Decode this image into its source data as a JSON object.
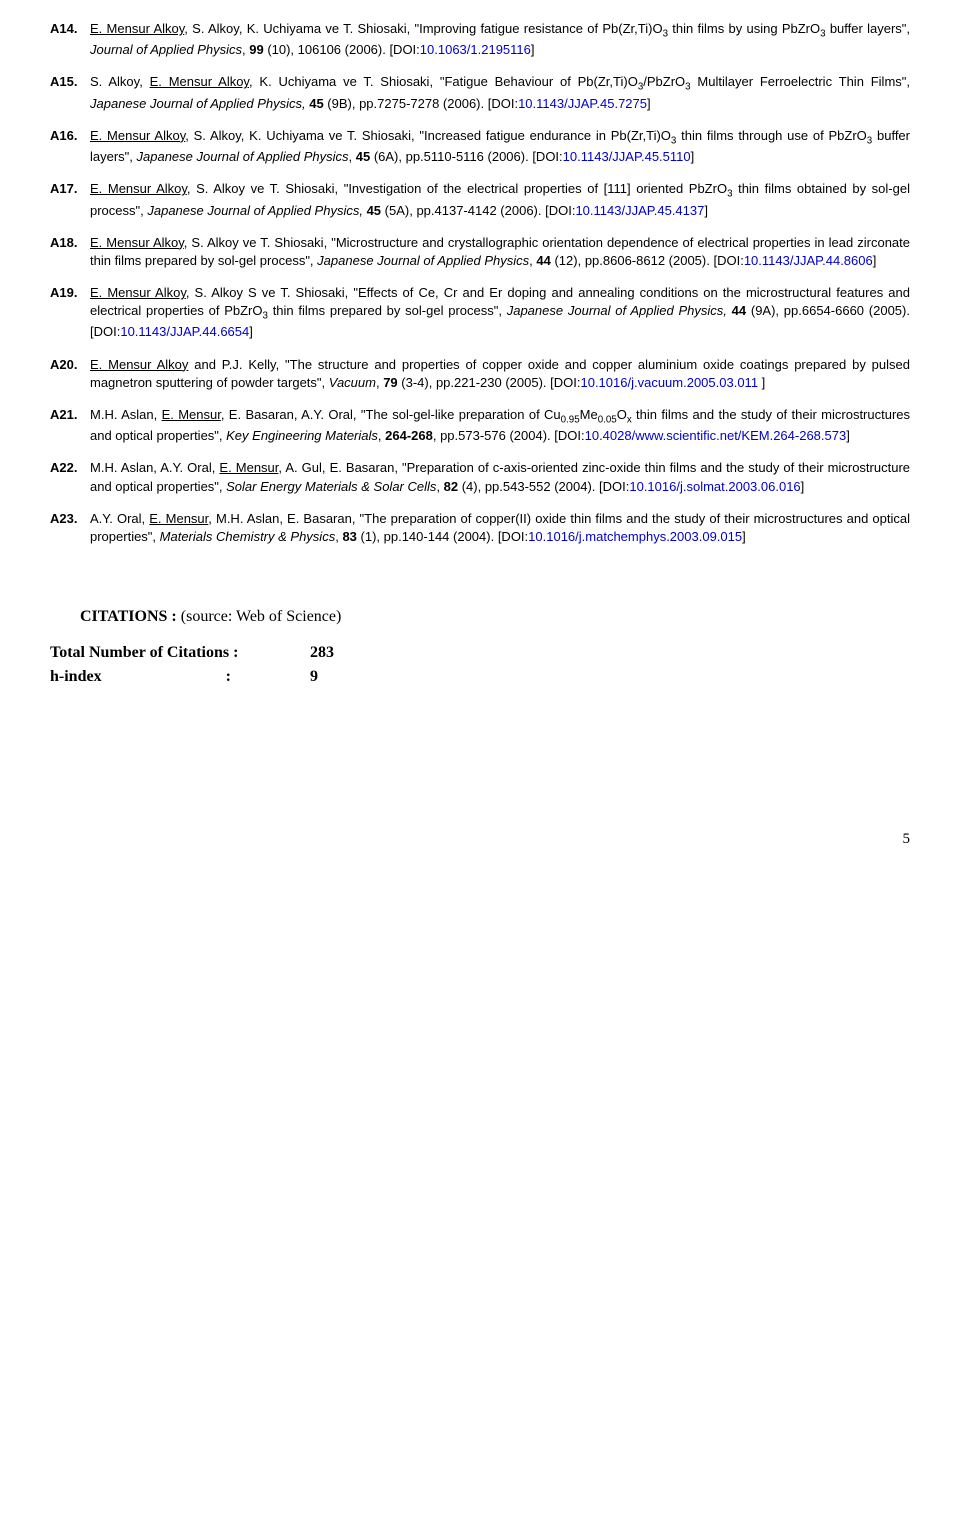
{
  "references": [
    {
      "num": "A14.",
      "author_underlined": "E. Mensur Alkoy",
      "rest_authors": ", S. Alkoy, K. Uchiyama ve T. Shiosaki, ",
      "title_open": "\"Improving fatigue resistance of Pb(Zr,Ti)O",
      "title_sub1": "3",
      "title_mid": " thin films by using PbZrO",
      "title_sub2": "3",
      "title_close": " buffer layers\", ",
      "journal": "Journal of Applied Physics",
      "after_journal": ", ",
      "volume": "99",
      "issue_pp": " (10), 106106 (2006). [DOI:",
      "doi": "10.1063/1.2195116",
      "doi_close": "]"
    },
    {
      "num": "A15.",
      "author_pre": "S. Alkoy, ",
      "author_underlined": "E. Mensur Alkoy",
      "rest_authors": ", K. Uchiyama ve T. Shiosaki, ",
      "title_open": "\"Fatigue Behaviour of Pb(Zr,Ti)O",
      "title_sub1": "3",
      "title_mid": "/PbZrO",
      "title_sub2": "3",
      "title_close": " Multilayer Ferroelectric Thin Films\", ",
      "journal": "Japanese Journal of Applied Physics, ",
      "volume": "45",
      "issue_pp": " (9B), pp.7275-7278 (2006). [DOI:",
      "doi": "10.1143/JJAP.45.7275",
      "doi_close": "]"
    },
    {
      "num": "A16.",
      "author_underlined": "E. Mensur Alkoy",
      "rest_authors": ", S. Alkoy, K. Uchiyama ve T. Shiosaki, ",
      "title_open": "\"Increased fatigue endurance in Pb(Zr,Ti)O",
      "title_sub1": "3",
      "title_mid": " thin films through use of PbZrO",
      "title_sub2": "3",
      "title_close": " buffer layers\", ",
      "journal": "Japanese Journal of Applied Physics",
      "after_journal": ", ",
      "volume": "45",
      "issue_pp": " (6A), pp.5110-5116 (2006). [DOI:",
      "doi": "10.1143/JJAP.45.5110",
      "doi_close": "]"
    },
    {
      "num": "A17.",
      "author_underlined": "E. Mensur Alkoy",
      "rest_authors": ", S. Alkoy ve T. Shiosaki, ",
      "title_open": "\"Investigation of the electrical properties of [111] oriented PbZrO",
      "title_sub1": "3",
      "title_close": " thin films obtained by sol-gel process\", ",
      "journal": "Japanese Journal of Applied Physics, ",
      "volume": "45",
      "issue_pp": " (5A), pp.4137-4142 (2006). [DOI:",
      "doi": "10.1143/JJAP.45.4137",
      "doi_close": "]"
    },
    {
      "num": "A18.",
      "author_underlined": "E. Mensur Alkoy",
      "rest_authors": ", S. Alkoy ve T. Shiosaki, ",
      "title_plain": "\"Microstructure and crystallographic orientation dependence of electrical properties in lead zirconate thin films prepared by sol-gel process\", ",
      "journal": "Japanese Journal of Applied Physics",
      "after_journal": ", ",
      "volume": "44",
      "issue_pp": " (12), pp.8606-8612 (2005). [DOI:",
      "doi": "10.1143/JJAP.44.8606",
      "doi_close": "]"
    },
    {
      "num": "A19.",
      "author_underlined": "E. Mensur Alkoy",
      "rest_authors": ", S. Alkoy S ve T. Shiosaki, ",
      "title_open": "\"Effects of Ce, Cr and Er doping and annealing conditions on the microstructural features and electrical properties of PbZrO",
      "title_sub1": "3",
      "title_close": " thin films prepared by sol-gel process\", ",
      "journal": "Japanese Journal of Applied Physics, ",
      "volume": "44",
      "issue_pp": " (9A), pp.6654-6660 (2005). [DOI:",
      "doi": "10.1143/JJAP.44.6654",
      "doi_close": "]"
    },
    {
      "num": "A20.",
      "author_underlined": "E. Mensur Alkoy",
      "rest_authors": " and P.J. Kelly, ",
      "title_plain": "\"The structure and properties of copper oxide and copper aluminium oxide coatings prepared by pulsed magnetron sputtering of powder targets\", ",
      "journal": "Vacuum",
      "after_journal": ", ",
      "volume": "79",
      "issue_pp": " (3-4), pp.221-230 (2005). [DOI:",
      "doi": "10.1016/j.vacuum.2005.03.011 ",
      "doi_close": "]"
    },
    {
      "num": "A21.",
      "author_pre": "M.H. Aslan, ",
      "author_underlined": "E. Mensur",
      "rest_authors": ", E. Basaran, A.Y. Oral, ",
      "cu_title": true,
      "cu_pre": "\"The sol-gel-like preparation of Cu",
      "cu_sub1": "0.95",
      "cu_mid1": "Me",
      "cu_sub2": "0.05",
      "cu_mid2": "O",
      "cu_sub3": "x",
      "cu_post": " thin films and the study of their microstructures and optical properties\", ",
      "journal": "Key Engineering Materials",
      "after_journal": ", ",
      "volume": "264-268",
      "issue_pp": ", pp.573-576 (2004). [DOI:",
      "doi": "10.4028/www.scientific.net/KEM.264-268.573",
      "doi_close": "]"
    },
    {
      "num": "A22.",
      "author_pre": "M.H. Aslan, A.Y. Oral, ",
      "author_underlined": "E. Mensur",
      "rest_authors": ", A. Gul, E. Basaran, ",
      "title_plain": "\"Preparation of c-axis-oriented zinc-oxide thin films and the study of their microstructure and optical properties\", ",
      "journal": "Solar Energy Materials & Solar Cells",
      "after_journal": ", ",
      "volume": "82",
      "issue_pp": " (4), pp.543-552 (2004). [DOI:",
      "doi": "10.1016/j.solmat.2003.06.016",
      "doi_close": "]"
    },
    {
      "num": "A23.",
      "author_pre": "A.Y. Oral, ",
      "author_underlined": "E. Mensur",
      "rest_authors": ", M.H. Aslan, E. Basaran, ",
      "title_plain": "\"The preparation of copper(II) oxide thin films and the study of their microstructures and optical properties\", ",
      "journal": "Materials Chemistry & Physics",
      "after_journal": ", ",
      "volume": "83",
      "issue_pp": " (1), pp.140-144 (2004). [DOI:",
      "doi": "10.1016/j.matchemphys.2003.09.015",
      "doi_close": "]"
    }
  ],
  "citations": {
    "header_bold": "CITATIONS : ",
    "header_rest": "(source: Web of Science)",
    "total_label": "Total Number of Citations :",
    "total_value": "283",
    "hindex_label": " h-index",
    "hindex_sep": ":  ",
    "hindex_value": "9"
  },
  "page_number": "5"
}
